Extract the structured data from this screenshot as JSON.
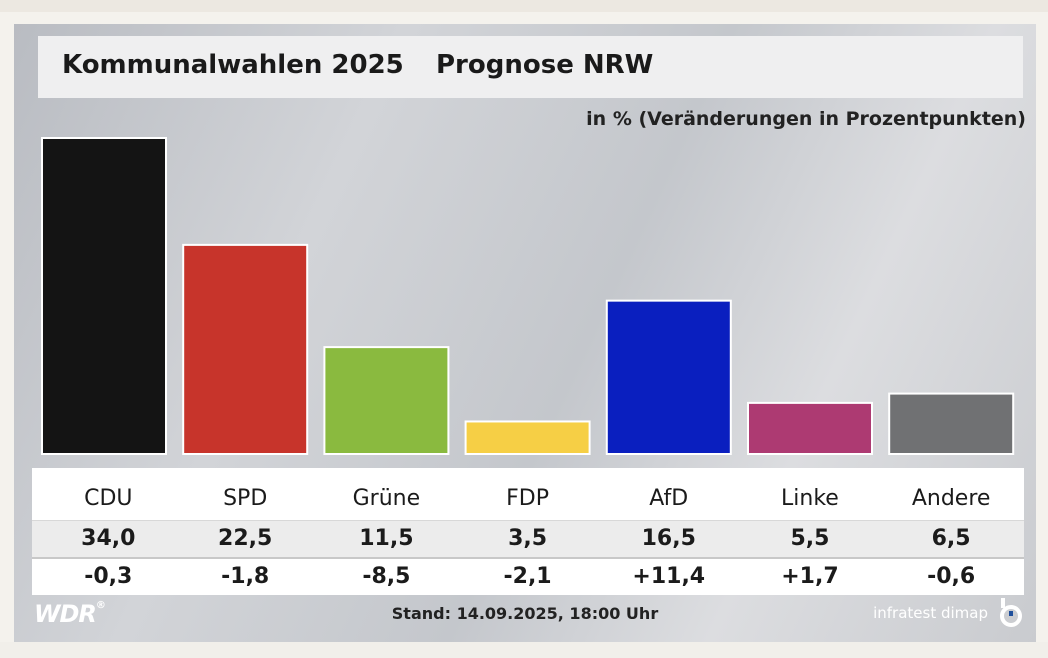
{
  "header": {
    "title": "Kommunalwahlen 2025",
    "subtitle": "Prognose NRW",
    "unit_label": "in % (Veränderungen in Prozentpunkten)"
  },
  "chart_data": {
    "type": "bar",
    "title": "Kommunalwahlen 2025",
    "subtitle": "Prognose NRW",
    "ylabel": "in % (Veränderungen in Prozentpunkten)",
    "categories": [
      "CDU",
      "SPD",
      "Grüne",
      "FDP",
      "AfD",
      "Linke",
      "Andere"
    ],
    "values": [
      34.0,
      22.5,
      11.5,
      3.5,
      16.5,
      5.5,
      6.5
    ],
    "value_labels": [
      "34,0",
      "22,5",
      "11,5",
      "3,5",
      "16,5",
      "5,5",
      "6,5"
    ],
    "changes": [
      "-0,3",
      "-1,8",
      "-8,5",
      "-2,1",
      "+11,4",
      "+1,7",
      "-0,6"
    ],
    "colors": [
      "#141414",
      "#c7342b",
      "#8aba3f",
      "#f6cf45",
      "#0a1fbf",
      "#ad3a72",
      "#707173"
    ],
    "ylim": [
      0,
      34.0
    ],
    "grid": false,
    "legend": "none"
  },
  "footer": {
    "stand": "Stand: 14.09.2025, 18:00 Uhr",
    "logo_left": "WDR",
    "logo_left_mark": "®",
    "logo_right": "infratest dimap"
  }
}
